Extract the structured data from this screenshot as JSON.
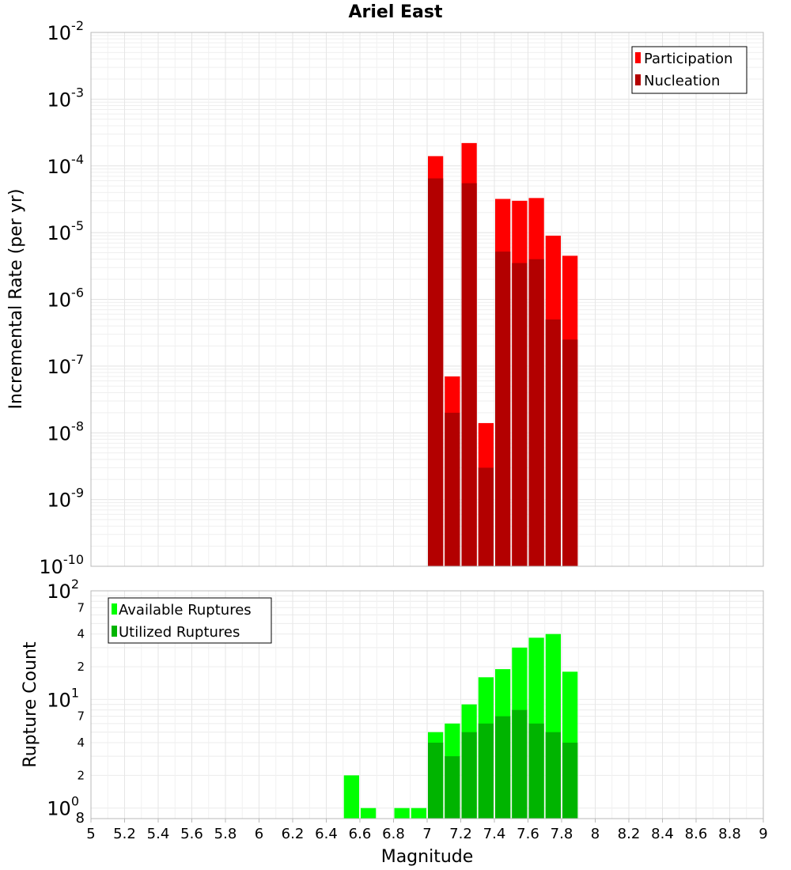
{
  "title": "Ariel East",
  "colors": {
    "participation": "#ff0000",
    "nucleation": "#b30000",
    "available": "#00ff00",
    "utilized": "#00b400"
  },
  "chart_data": [
    {
      "type": "bar",
      "ylabel": "Incremental Rate (per yr)",
      "yscale": "log",
      "ylim": [
        1e-10,
        0.01
      ],
      "xlim": [
        5,
        9
      ],
      "legend": "top-right",
      "grid": true,
      "x": [
        7.0,
        7.1,
        7.2,
        7.3,
        7.4,
        7.5,
        7.6,
        7.7,
        7.8
      ],
      "series": [
        {
          "name": "Participation",
          "values": [
            0.00014,
            7e-08,
            0.00022,
            1.4e-08,
            3.2e-05,
            3e-05,
            3.3e-05,
            9e-06,
            4.5e-06
          ]
        },
        {
          "name": "Nucleation",
          "values": [
            6.5e-05,
            2e-08,
            5.5e-05,
            3e-09,
            5.2e-06,
            3.5e-06,
            4e-06,
            5e-07,
            2.5e-07
          ]
        }
      ]
    },
    {
      "type": "bar",
      "ylabel": "Rupture Count",
      "yscale": "log",
      "ylim": [
        0.8,
        100
      ],
      "xlim": [
        5,
        9
      ],
      "legend": "top-left",
      "grid": true,
      "series": [
        {
          "name": "Available Ruptures",
          "x": [
            6.6,
            6.7,
            6.9,
            7.0,
            7.1,
            7.2,
            7.3,
            7.4,
            7.5,
            7.6,
            7.7,
            7.8,
            7.9
          ],
          "values": [
            2,
            1,
            1,
            1,
            5,
            6,
            9,
            16,
            19,
            30,
            37,
            40,
            18
          ]
        },
        {
          "name": "Utilized Ruptures",
          "x": [
            7.1,
            7.2,
            7.3,
            7.4,
            7.5,
            7.6,
            7.7,
            7.8,
            7.9
          ],
          "values": [
            4,
            3,
            5,
            6,
            7,
            8,
            6,
            5,
            4
          ]
        }
      ]
    }
  ],
  "xlabel": "Magnitude",
  "xticks": [
    "5",
    "5.2",
    "5.4",
    "5.6",
    "5.8",
    "6",
    "6.2",
    "6.4",
    "6.6",
    "6.8",
    "7",
    "7.2",
    "7.4",
    "7.6",
    "7.8",
    "8",
    "8.2",
    "8.4",
    "8.6",
    "8.8",
    "9"
  ],
  "top_yticks": [
    {
      "base": "10",
      "exp": "-2"
    },
    {
      "base": "10",
      "exp": "-3"
    },
    {
      "base": "10",
      "exp": "-4"
    },
    {
      "base": "10",
      "exp": "-5"
    },
    {
      "base": "10",
      "exp": "-6"
    },
    {
      "base": "10",
      "exp": "-7"
    },
    {
      "base": "10",
      "exp": "-8"
    },
    {
      "base": "10",
      "exp": "-9"
    },
    {
      "base": "10",
      "exp": "-10"
    }
  ],
  "bottom_yticks": {
    "major": [
      {
        "base": "10",
        "exp": "2",
        "value": 100
      },
      {
        "base": "10",
        "exp": "1",
        "value": 10
      },
      {
        "base": "10",
        "exp": "0",
        "value": 1
      }
    ],
    "minor": [
      {
        "label": "7",
        "value": 70
      },
      {
        "label": "4",
        "value": 40
      },
      {
        "label": "2",
        "value": 20
      },
      {
        "label": "7",
        "value": 7
      },
      {
        "label": "4",
        "value": 4
      },
      {
        "label": "2",
        "value": 2
      },
      {
        "label": "8",
        "value": 0.8
      }
    ]
  }
}
